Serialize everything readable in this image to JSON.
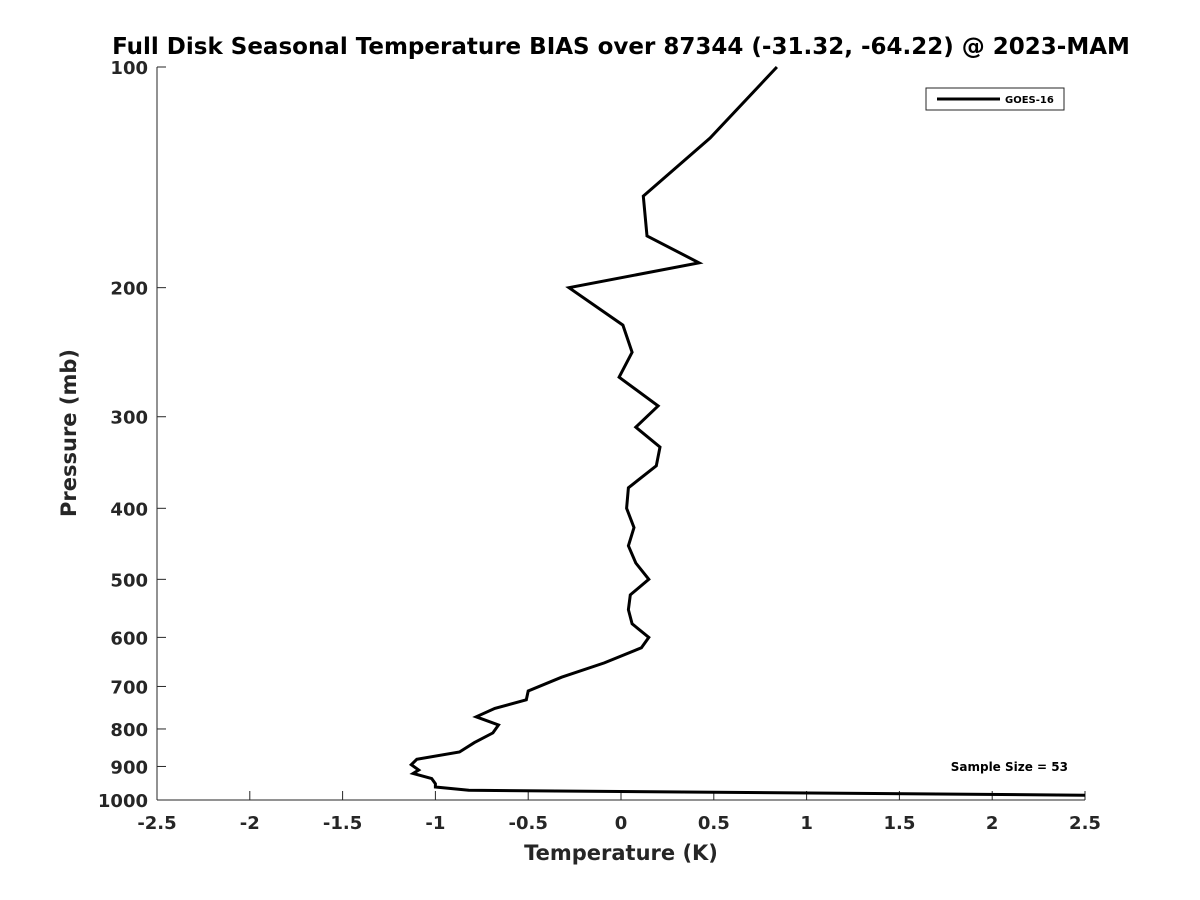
{
  "chart_data": {
    "type": "line",
    "title": "Full Disk Seasonal Temperature BIAS over 87344 (-31.32, -64.22) @ 2023-MAM",
    "xlabel": "Temperature (K)",
    "ylabel": "Pressure (mb)",
    "xlim": [
      -2.5,
      2.5
    ],
    "ylim": [
      1000,
      100
    ],
    "y_scale": "log",
    "x_ticks": [
      "-2.5",
      "-2",
      "-1.5",
      "-1",
      "-0.5",
      "0",
      "0.5",
      "1",
      "1.5",
      "2",
      "2.5"
    ],
    "y_ticks": [
      "100",
      "200",
      "300",
      "400",
      "500",
      "600",
      "700",
      "800",
      "900",
      "1000"
    ],
    "legend": {
      "placement": "top-right",
      "entries": [
        "GOES-16"
      ]
    },
    "annotation": "Sample Size = 53",
    "grid": false,
    "series": [
      {
        "name": "GOES-16",
        "color": "#000000",
        "points": [
          [
            0.84,
            100
          ],
          [
            0.48,
            125
          ],
          [
            0.12,
            150
          ],
          [
            0.14,
            170
          ],
          [
            0.42,
            185
          ],
          [
            -0.28,
            200
          ],
          [
            0.01,
            225
          ],
          [
            0.06,
            245
          ],
          [
            -0.01,
            265
          ],
          [
            0.2,
            290
          ],
          [
            0.08,
            310
          ],
          [
            0.21,
            330
          ],
          [
            0.19,
            350
          ],
          [
            0.04,
            375
          ],
          [
            0.03,
            400
          ],
          [
            0.07,
            425
          ],
          [
            0.04,
            450
          ],
          [
            0.08,
            475
          ],
          [
            0.15,
            500
          ],
          [
            0.05,
            525
          ],
          [
            0.04,
            550
          ],
          [
            0.06,
            575
          ],
          [
            0.15,
            600
          ],
          [
            0.11,
            620
          ],
          [
            -0.09,
            650
          ],
          [
            -0.32,
            680
          ],
          [
            -0.5,
            710
          ],
          [
            -0.51,
            730
          ],
          [
            -0.68,
            750
          ],
          [
            -0.78,
            770
          ],
          [
            -0.66,
            790
          ],
          [
            -0.69,
            810
          ],
          [
            -0.79,
            835
          ],
          [
            -0.87,
            860
          ],
          [
            -1.1,
            880
          ],
          [
            -1.13,
            895
          ],
          [
            -1.09,
            910
          ],
          [
            -1.12,
            920
          ],
          [
            -1.02,
            935
          ],
          [
            -1.0,
            950
          ],
          [
            -1.0,
            960
          ],
          [
            -0.82,
            970
          ],
          [
            2.5,
            985
          ]
        ]
      }
    ]
  }
}
